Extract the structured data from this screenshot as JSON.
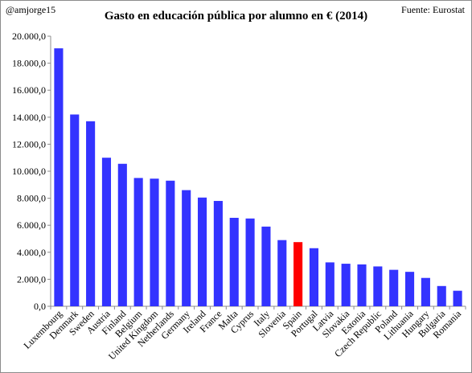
{
  "header": {
    "author": "@amjorge15",
    "source": "Fuente: Eurostat"
  },
  "chart_data": {
    "type": "bar",
    "title": "Gasto en educación pública  por  alumno  en € (2014)",
    "xlabel": "",
    "ylabel": "",
    "ylim": [
      0,
      20000
    ],
    "yticks": [
      0,
      2000,
      4000,
      6000,
      8000,
      10000,
      12000,
      14000,
      16000,
      18000,
      20000
    ],
    "ytick_labels": [
      "0,0",
      "2.000,0",
      "4.000,0",
      "6.000,0",
      "8.000,0",
      "10.000,0",
      "12.000,0",
      "14.000,0",
      "16.000,0",
      "18.000,0",
      "20.000,0"
    ],
    "grid": "none",
    "categories": [
      "Luxembourg",
      "Denmark",
      "Sweden",
      "Austria",
      "Finland",
      "Belgium",
      "United Kingdom",
      "Netherlands",
      "Germany",
      "Ireland",
      "France",
      "Malta",
      "Cyprus",
      "Italy",
      "Slovenia",
      "Spain",
      "Portugal",
      "Latvia",
      "Slovakia",
      "Estonia",
      "Czech Republic",
      "Poland",
      "Lithuania",
      "Hungary",
      "Bulgaria",
      "Romania"
    ],
    "values": [
      19100,
      14200,
      13700,
      11000,
      10550,
      9500,
      9450,
      9300,
      8600,
      8050,
      7800,
      6550,
      6500,
      5900,
      4900,
      4750,
      4300,
      3250,
      3150,
      3100,
      2950,
      2700,
      2550,
      2100,
      1500,
      1150
    ],
    "colors": {
      "default": "#3333ff",
      "highlight": "#ff0000",
      "axis": "#8c8c8c"
    },
    "highlight": "Spain"
  }
}
